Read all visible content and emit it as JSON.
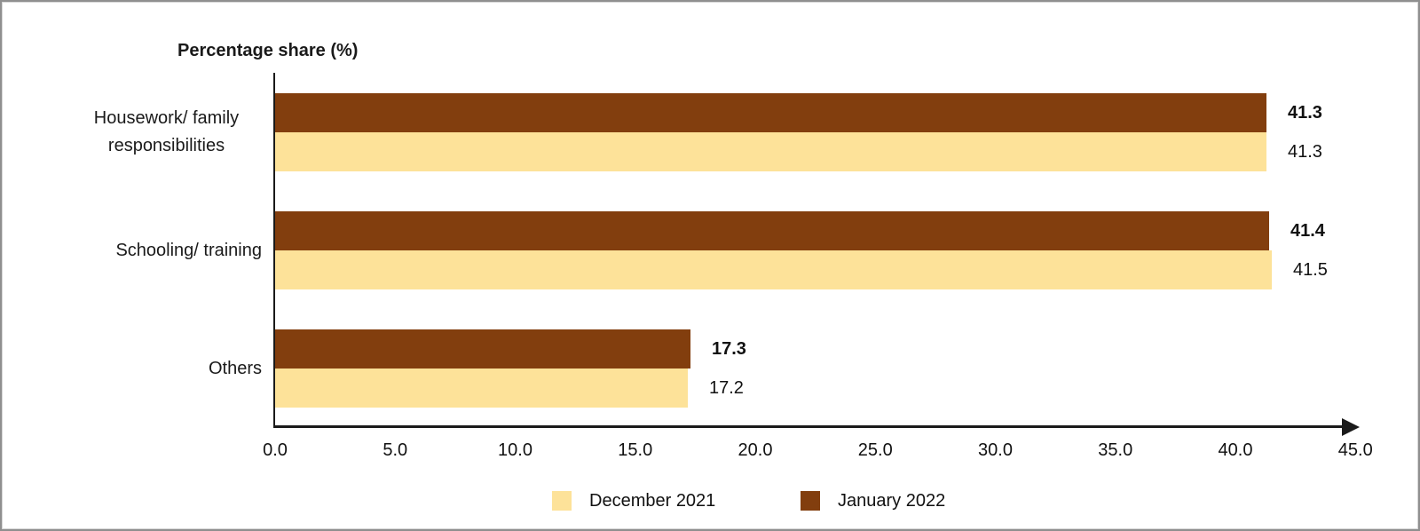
{
  "chart_data": {
    "type": "bar",
    "orientation": "horizontal",
    "title": "Percentage share (%)",
    "xlabel": "",
    "ylabel": "",
    "categories": [
      "Housework/ family responsibilities",
      "Schooling/ training",
      "Others"
    ],
    "series": [
      {
        "name": "January 2022",
        "color": "#823E0E",
        "values": [
          41.3,
          41.4,
          17.3
        ],
        "value_labels": [
          "41.3",
          "41.4",
          "17.3"
        ],
        "labels_bold": true
      },
      {
        "name": "December 2021",
        "color": "#FDE299",
        "values": [
          41.3,
          41.5,
          17.2
        ],
        "value_labels": [
          "41.3",
          "41.5",
          "17.2"
        ],
        "labels_bold": false
      }
    ],
    "x_axis": {
      "min": 0,
      "max": 45,
      "tick_step": 5,
      "tick_labels": [
        "0.0",
        "5.0",
        "10.0",
        "15.0",
        "20.0",
        "25.0",
        "30.0",
        "35.0",
        "40.0",
        "45.0"
      ],
      "arrow": true,
      "grid": false
    },
    "legend": {
      "position": "bottom",
      "items": [
        {
          "label": "December 2021",
          "color": "#FDE299"
        },
        {
          "label": "January 2022",
          "color": "#823E0E"
        }
      ]
    }
  }
}
